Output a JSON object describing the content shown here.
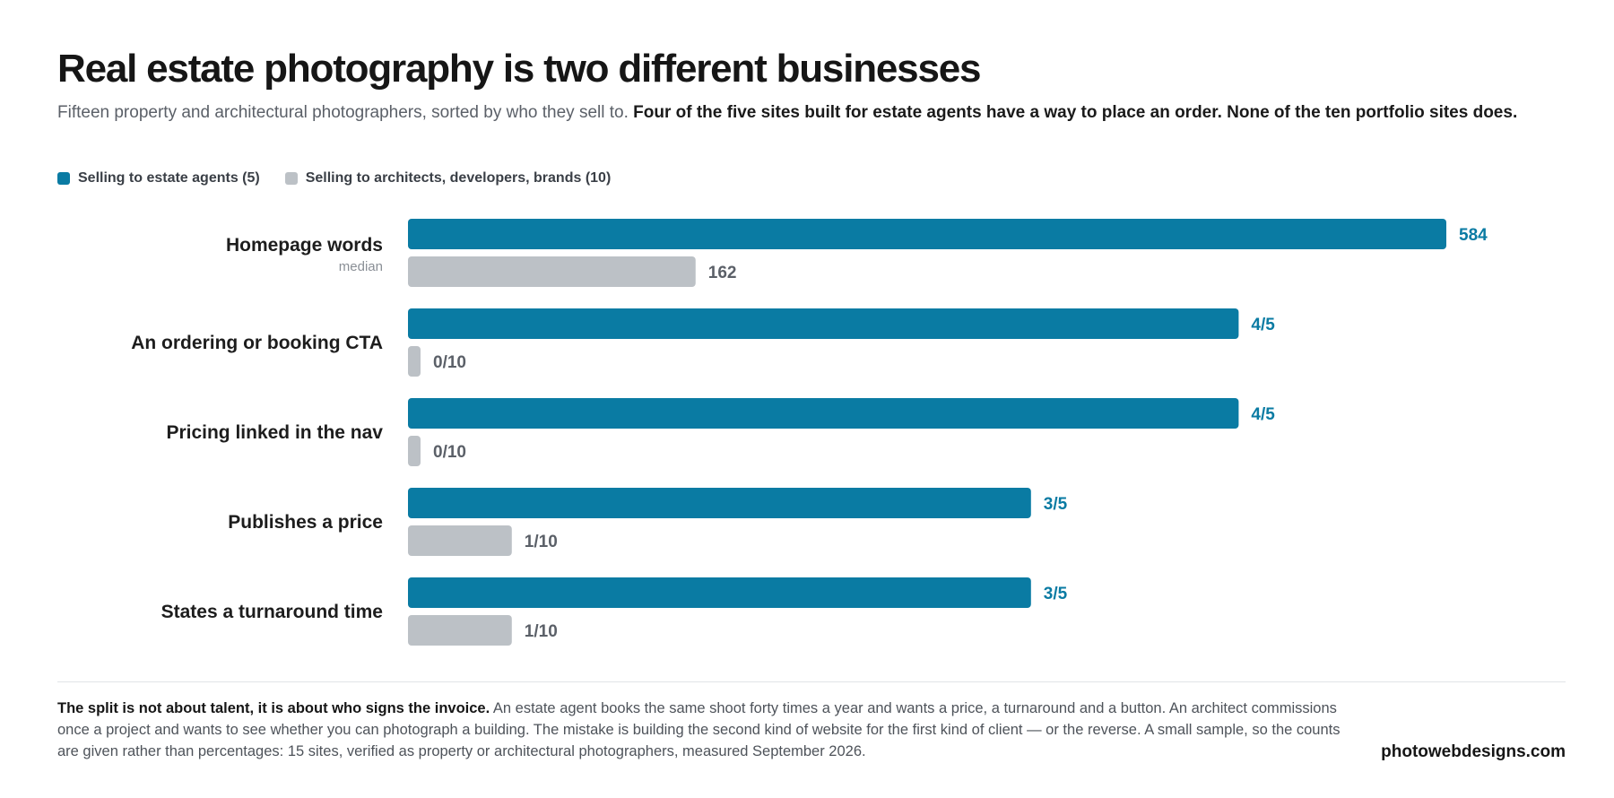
{
  "title": "Real estate photography is two different businesses",
  "subtitle": {
    "lead": "Fifteen property and architectural photographers, sorted by who they sell to.",
    "bold": "Four of the five sites built for estate agents have a way to place an order. None of the ten portfolio sites does."
  },
  "legend": [
    {
      "label": "Selling to estate agents (5)",
      "color": "#0a7ba3"
    },
    {
      "label": "Selling to architects, developers, brands (10)",
      "color": "#bcc1c6"
    }
  ],
  "chart_data": {
    "type": "bar",
    "orientation": "horizontal",
    "grid": false,
    "legend_position": "top-left",
    "categories": [
      {
        "label": "Homepage words",
        "sublabel": "median"
      },
      {
        "label": "An ordering or booking CTA",
        "sublabel": ""
      },
      {
        "label": "Pricing linked in the nav",
        "sublabel": ""
      },
      {
        "label": "Publishes a price",
        "sublabel": ""
      },
      {
        "label": "States a turnaround time",
        "sublabel": ""
      }
    ],
    "series": [
      {
        "name": "Selling to estate agents (5)",
        "color": "#0a7ba3",
        "label_color": "#0a7ba3",
        "values": [
          1.0,
          0.8,
          0.8,
          0.6,
          0.6
        ],
        "labels": [
          "584",
          "4/5",
          "4/5",
          "3/5",
          "3/5"
        ]
      },
      {
        "name": "Selling to architects, developers, brands (10)",
        "color": "#bcc1c6",
        "label_color": "#5b6068",
        "values": [
          0.277,
          0.0,
          0.0,
          0.1,
          0.1
        ],
        "labels": [
          "162",
          "0/10",
          "0/10",
          "1/10",
          "1/10"
        ]
      }
    ]
  },
  "footnote": {
    "bold": "The split is not about talent, it is about who signs the invoice.",
    "text": "An estate agent books the same shoot forty times a year and wants a price, a turnaround and a button. An architect commissions once a project and wants to see whether you can photograph a building. The mistake is building the second kind of website for the first kind of client — or the reverse. A small sample, so the counts are given rather than percentages: 15 sites, verified as property or architectural photographers, measured September 2026."
  },
  "brand": "photowebdesigns.com"
}
